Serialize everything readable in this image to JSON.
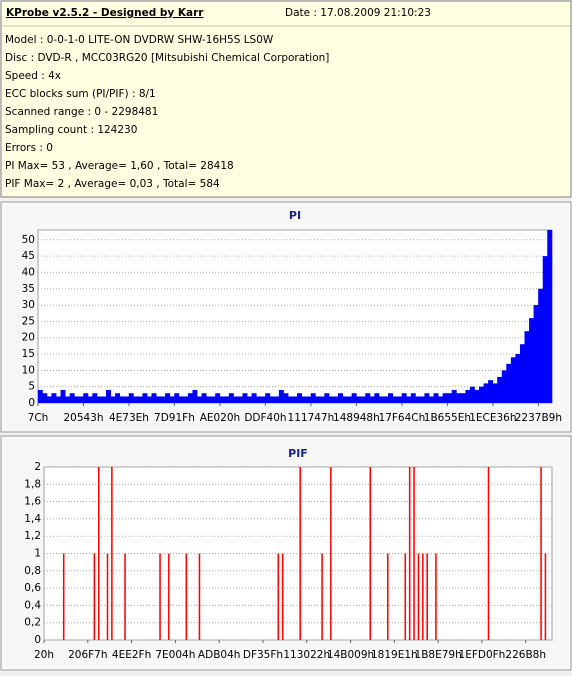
{
  "header": {
    "title": "KProbe v2.5.2 - Designed by Karr",
    "date": "Date : 17.08.2009 21:10:23",
    "lines": [
      "Model : 0-0-1-0 LITE-ON DVDRW SHW-16H5S  LS0W",
      "Disc : DVD-R , MCC03RG20 [Mitsubishi Chemical Corporation]",
      "Speed : 4x",
      "ECC blocks sum (PI/PIF) : 8/1",
      "Scanned range : 0 - 2298481",
      "Sampling count : 124230",
      "Errors : 0",
      "PI Max= 53 , Average= 1,60 , Total= 28418",
      "PIF Max= 2 , Average= 0,03 , Total= 584"
    ]
  },
  "chart_data": [
    {
      "type": "bar",
      "title": "PI",
      "color": "#0000ff",
      "grid": true,
      "categories": [
        "7Ch",
        null,
        null,
        null,
        null,
        null,
        null,
        null,
        null,
        null,
        "20543h",
        null,
        null,
        null,
        null,
        null,
        null,
        null,
        null,
        null,
        "4E73Eh",
        null,
        null,
        null,
        null,
        null,
        null,
        null,
        null,
        null,
        "7D91Fh",
        null,
        null,
        null,
        null,
        null,
        null,
        null,
        null,
        null,
        "AE020h",
        null,
        null,
        null,
        null,
        null,
        null,
        null,
        null,
        null,
        "DDF40h",
        null,
        null,
        null,
        null,
        null,
        null,
        null,
        null,
        null,
        "111747h",
        null,
        null,
        null,
        null,
        null,
        null,
        null,
        null,
        null,
        "148948h",
        null,
        null,
        null,
        null,
        null,
        null,
        null,
        null,
        null,
        "17F64Ch",
        null,
        null,
        null,
        null,
        null,
        null,
        null,
        null,
        null,
        "1B655Eh",
        null,
        null,
        null,
        null,
        null,
        null,
        null,
        null,
        null,
        "1ECE36h",
        null,
        null,
        null,
        null,
        null,
        null,
        null,
        null,
        null,
        "2237B9h",
        null,
        null
      ],
      "values": [
        4,
        3,
        2,
        3,
        2,
        4,
        2,
        3,
        2,
        2,
        3,
        2,
        3,
        2,
        2,
        4,
        2,
        3,
        2,
        2,
        3,
        2,
        2,
        3,
        2,
        3,
        2,
        2,
        3,
        2,
        3,
        2,
        2,
        3,
        4,
        2,
        3,
        2,
        2,
        3,
        2,
        2,
        3,
        2,
        2,
        3,
        2,
        3,
        2,
        2,
        3,
        2,
        2,
        4,
        3,
        2,
        2,
        3,
        2,
        2,
        3,
        2,
        2,
        3,
        2,
        2,
        3,
        2,
        2,
        3,
        2,
        2,
        3,
        2,
        3,
        2,
        2,
        3,
        2,
        2,
        3,
        2,
        3,
        2,
        2,
        3,
        2,
        3,
        2,
        3,
        3,
        4,
        3,
        3,
        4,
        5,
        4,
        5,
        6,
        7,
        6,
        8,
        10,
        12,
        14,
        15,
        18,
        22,
        26,
        30,
        35,
        45,
        53
      ],
      "ylim": [
        0,
        53
      ],
      "yticks": [
        0,
        5,
        10,
        15,
        20,
        25,
        30,
        35,
        40,
        45,
        50
      ]
    },
    {
      "type": "bar",
      "title": "PIF",
      "color": "#ff0000",
      "grid": true,
      "categories": [
        "20h",
        null,
        null,
        null,
        null,
        null,
        null,
        null,
        null,
        null,
        "206F7h",
        null,
        null,
        null,
        null,
        null,
        null,
        null,
        null,
        null,
        "4EE2Fh",
        null,
        null,
        null,
        null,
        null,
        null,
        null,
        null,
        null,
        "7E004h",
        null,
        null,
        null,
        null,
        null,
        null,
        null,
        null,
        null,
        "ADB04h",
        null,
        null,
        null,
        null,
        null,
        null,
        null,
        null,
        null,
        "DF35Fh",
        null,
        null,
        null,
        null,
        null,
        null,
        null,
        null,
        null,
        "113022h",
        null,
        null,
        null,
        null,
        null,
        null,
        null,
        null,
        null,
        "14B009h",
        null,
        null,
        null,
        null,
        null,
        null,
        null,
        null,
        null,
        "1819E1h",
        null,
        null,
        null,
        null,
        null,
        null,
        null,
        null,
        null,
        "1B8E79h",
        null,
        null,
        null,
        null,
        null,
        null,
        null,
        null,
        null,
        "1EFD0Fh",
        null,
        null,
        null,
        null,
        null,
        null,
        null,
        null,
        null,
        "226B8h",
        null,
        null,
        null,
        null,
        null
      ],
      "values": [
        0,
        0,
        0,
        0,
        1,
        0,
        0,
        0,
        0,
        0,
        0,
        1,
        2,
        0,
        1,
        2,
        0,
        0,
        1,
        0,
        0,
        0,
        0,
        0,
        0,
        0,
        1,
        0,
        1,
        0,
        0,
        0,
        1,
        0,
        0,
        1,
        0,
        0,
        0,
        0,
        0,
        0,
        0,
        0,
        0,
        0,
        0,
        0,
        0,
        0,
        0,
        0,
        0,
        1,
        1,
        0,
        0,
        0,
        2,
        0,
        0,
        0,
        0,
        1,
        0,
        2,
        0,
        0,
        0,
        0,
        0,
        0,
        0,
        0,
        2,
        0,
        0,
        0,
        1,
        0,
        0,
        0,
        1,
        2,
        2,
        1,
        1,
        1,
        0,
        1,
        0,
        0,
        0,
        0,
        0,
        0,
        0,
        0,
        0,
        0,
        0,
        2,
        0,
        0,
        0,
        0,
        0,
        0,
        0,
        0,
        0,
        0,
        0,
        2,
        1,
        0
      ],
      "ylim": [
        0,
        2
      ],
      "yticks": [
        0,
        {
          "value": 0.2,
          "label": "0,2"
        },
        {
          "value": 0.4,
          "label": "0,4"
        },
        {
          "value": 0.6,
          "label": "0,6"
        },
        {
          "value": 0.8,
          "label": "0,8"
        },
        1,
        {
          "value": 1.2,
          "label": "1,2"
        },
        {
          "value": 1.4,
          "label": "1,4"
        },
        {
          "value": 1.6,
          "label": "1,6"
        },
        {
          "value": 1.8,
          "label": "1,8"
        },
        2
      ]
    }
  ]
}
